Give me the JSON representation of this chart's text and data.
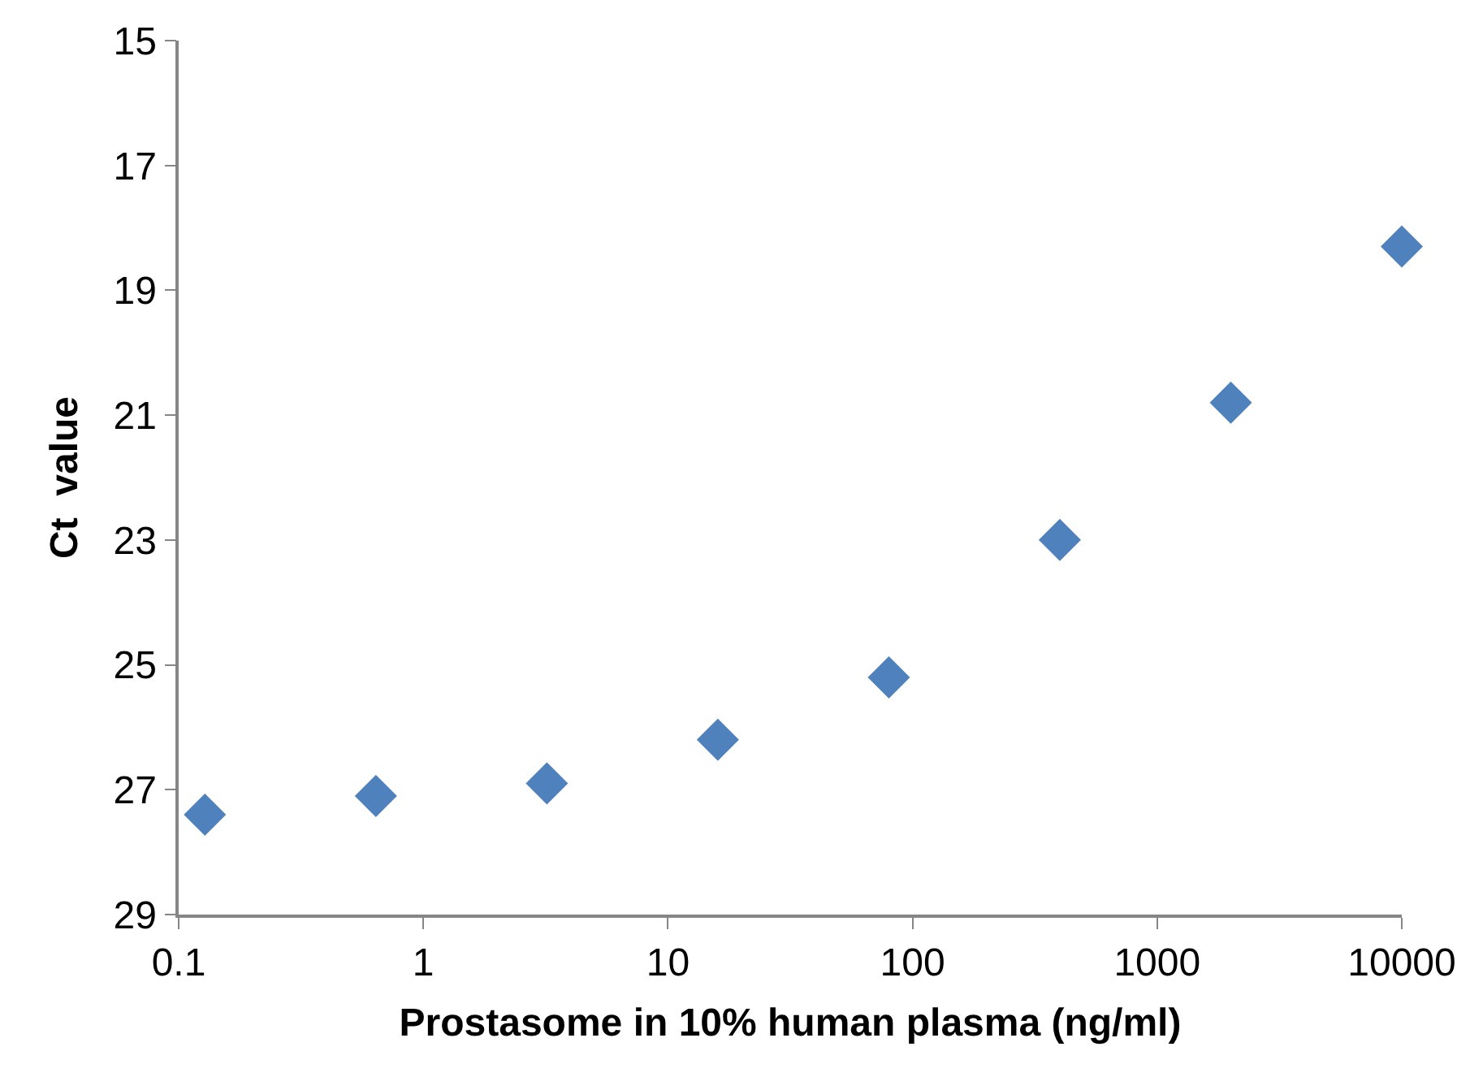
{
  "chart_data": {
    "type": "scatter",
    "xlabel": "Prostasome in 10% human plasma (ng/ml)",
    "ylabel": "Ct  value",
    "x": [
      0.128,
      0.64,
      3.2,
      16,
      80,
      400,
      2000,
      10000
    ],
    "series": [
      {
        "color": "#4f81bd",
        "values": [
          27.4,
          27.1,
          26.9,
          26.2,
          25.2,
          23.0,
          20.8,
          18.3
        ]
      }
    ],
    "log": "x",
    "xlim": [
      0.1,
      10000
    ],
    "xticks": [
      0.1,
      1,
      10,
      100,
      1000,
      10000
    ],
    "ylim": [
      29,
      15
    ],
    "yticks": [
      15,
      17,
      19,
      21,
      23,
      25,
      27,
      29
    ],
    "legend": false,
    "marker": "diamond"
  }
}
